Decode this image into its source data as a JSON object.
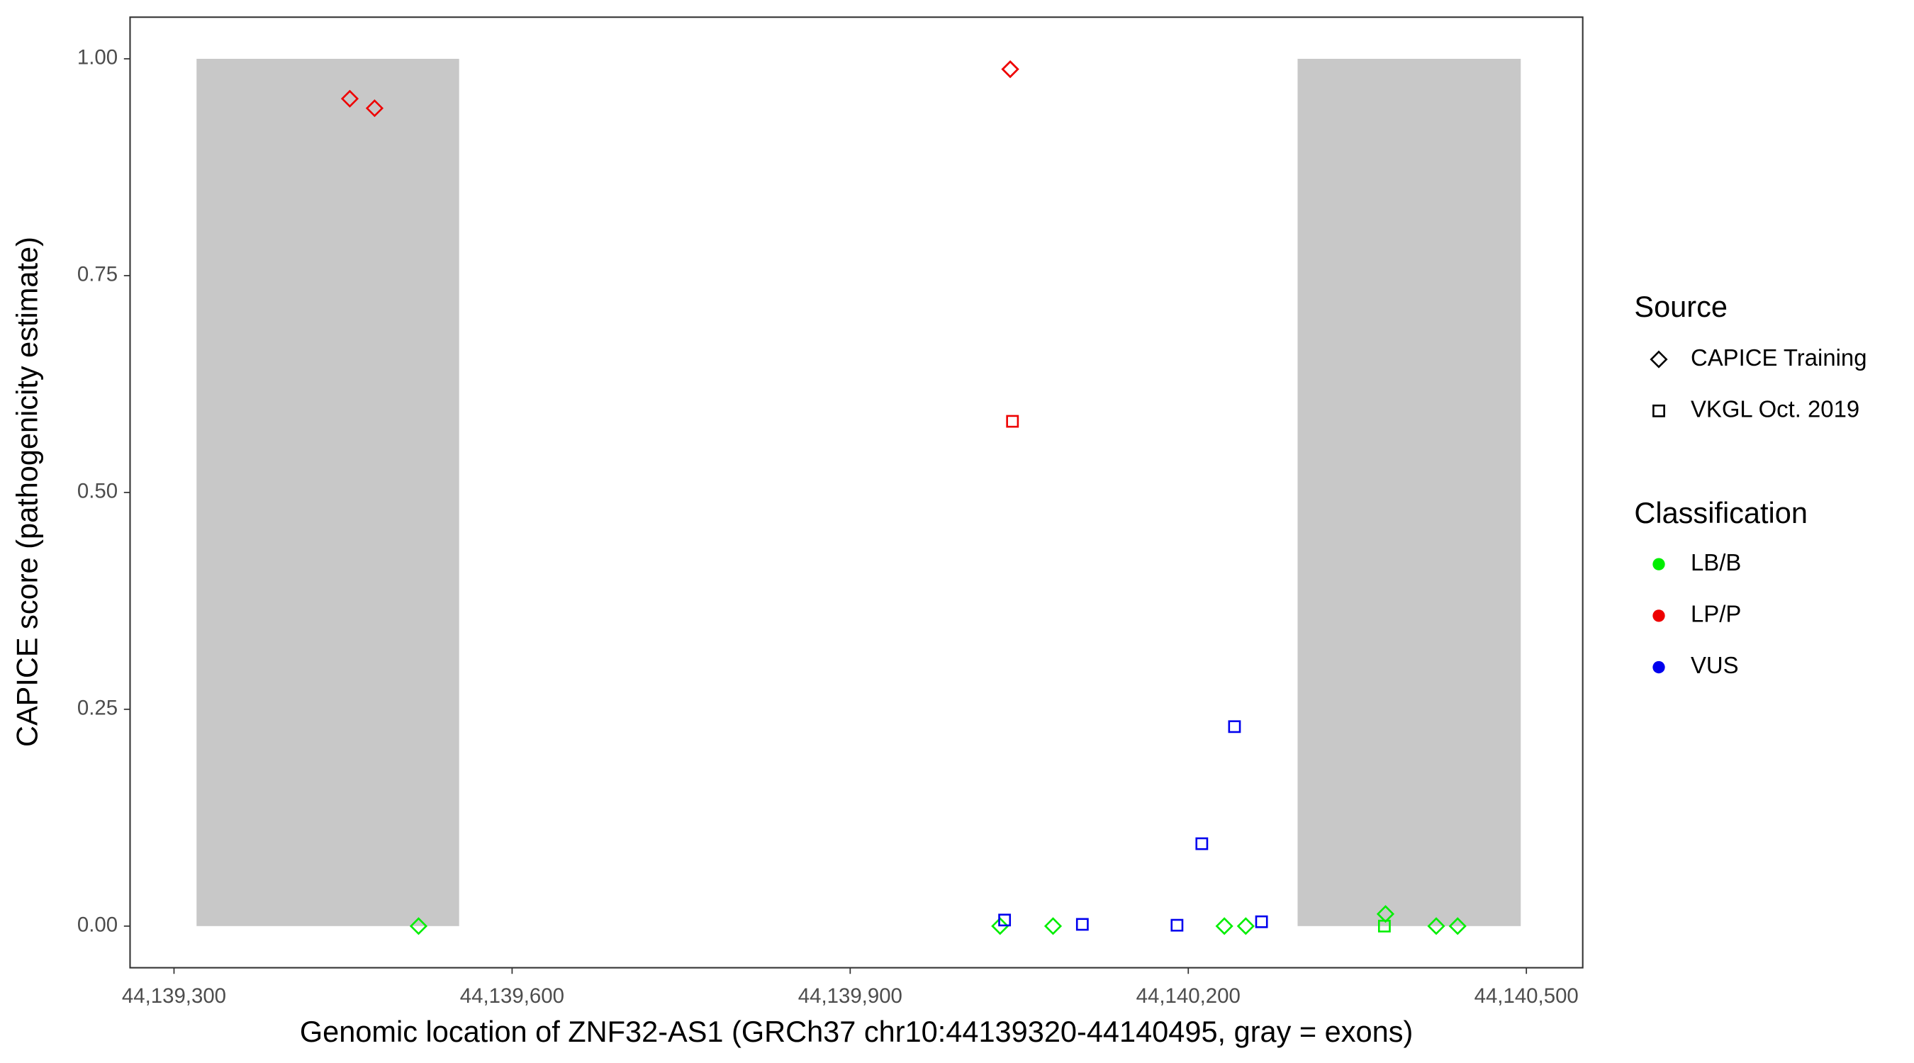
{
  "chart_data": {
    "type": "scatter",
    "x_label": "Genomic location of ZNF32-AS1 (GRCh37 chr10:44139320-44140495, gray = exons)",
    "y_label": "CAPICE score (pathogenicity estimate)",
    "xlim": [
      44139261,
      44140550
    ],
    "ylim": [
      -0.048,
      1.048
    ],
    "xticks": [
      {
        "value": 44139300,
        "label": "44,139,300"
      },
      {
        "value": 44139600,
        "label": "44,139,600"
      },
      {
        "value": 44139900,
        "label": "44,139,900"
      },
      {
        "value": 44140200,
        "label": "44,140,200"
      },
      {
        "value": 44140500,
        "label": "44,140,500"
      }
    ],
    "yticks": [
      {
        "value": 0,
        "label": "0.00"
      },
      {
        "value": 0.25,
        "label": "0.25"
      },
      {
        "value": 0.5,
        "label": "0.50"
      },
      {
        "value": 0.75,
        "label": "0.75"
      },
      {
        "value": 1,
        "label": "1.00"
      }
    ],
    "exons": [
      [
        44139320,
        44139553
      ],
      [
        44140297,
        44140495
      ]
    ],
    "exon_color": "#c8c8c8",
    "legend": {
      "source_title": "Source",
      "sources": [
        {
          "label": "CAPICE Training",
          "shape": "diamond"
        },
        {
          "label": "VKGL Oct. 2019",
          "shape": "square"
        }
      ],
      "classification_title": "Classification",
      "classes": [
        {
          "label": "LB/B",
          "color": "#00ee00"
        },
        {
          "label": "LP/P",
          "color": "#ee0000"
        },
        {
          "label": "VUS",
          "color": "#0000ee"
        }
      ]
    },
    "series": [
      {
        "source": "CAPICE Training",
        "classification": "LP/P",
        "x": [
          44139456,
          44139478,
          44140042,
          44140042
        ],
        "values": [
          0.954,
          0.943,
          0.988,
          0.988
        ]
      },
      {
        "source": "VKGL Oct. 2019",
        "classification": "LP/P",
        "x": [
          44140044
        ],
        "values": [
          0.582
        ]
      },
      {
        "source": "CAPICE Training",
        "classification": "LB/B",
        "x": [
          44139517,
          44140033,
          44140080,
          44140232,
          44140251,
          44140375,
          44140420,
          44140439
        ],
        "values": [
          0,
          0,
          0,
          0,
          0,
          0.014,
          0,
          0
        ]
      },
      {
        "source": "VKGL Oct. 2019",
        "classification": "LB/B",
        "x": [
          44140374
        ],
        "values": [
          0
        ]
      },
      {
        "source": "VKGL Oct. 2019",
        "classification": "VUS",
        "x": [
          44140037,
          44140106,
          44140190,
          44140212,
          44140241,
          44140265
        ],
        "values": [
          0.007,
          0.002,
          0.001,
          0.095,
          0.23,
          0.005
        ]
      }
    ]
  }
}
